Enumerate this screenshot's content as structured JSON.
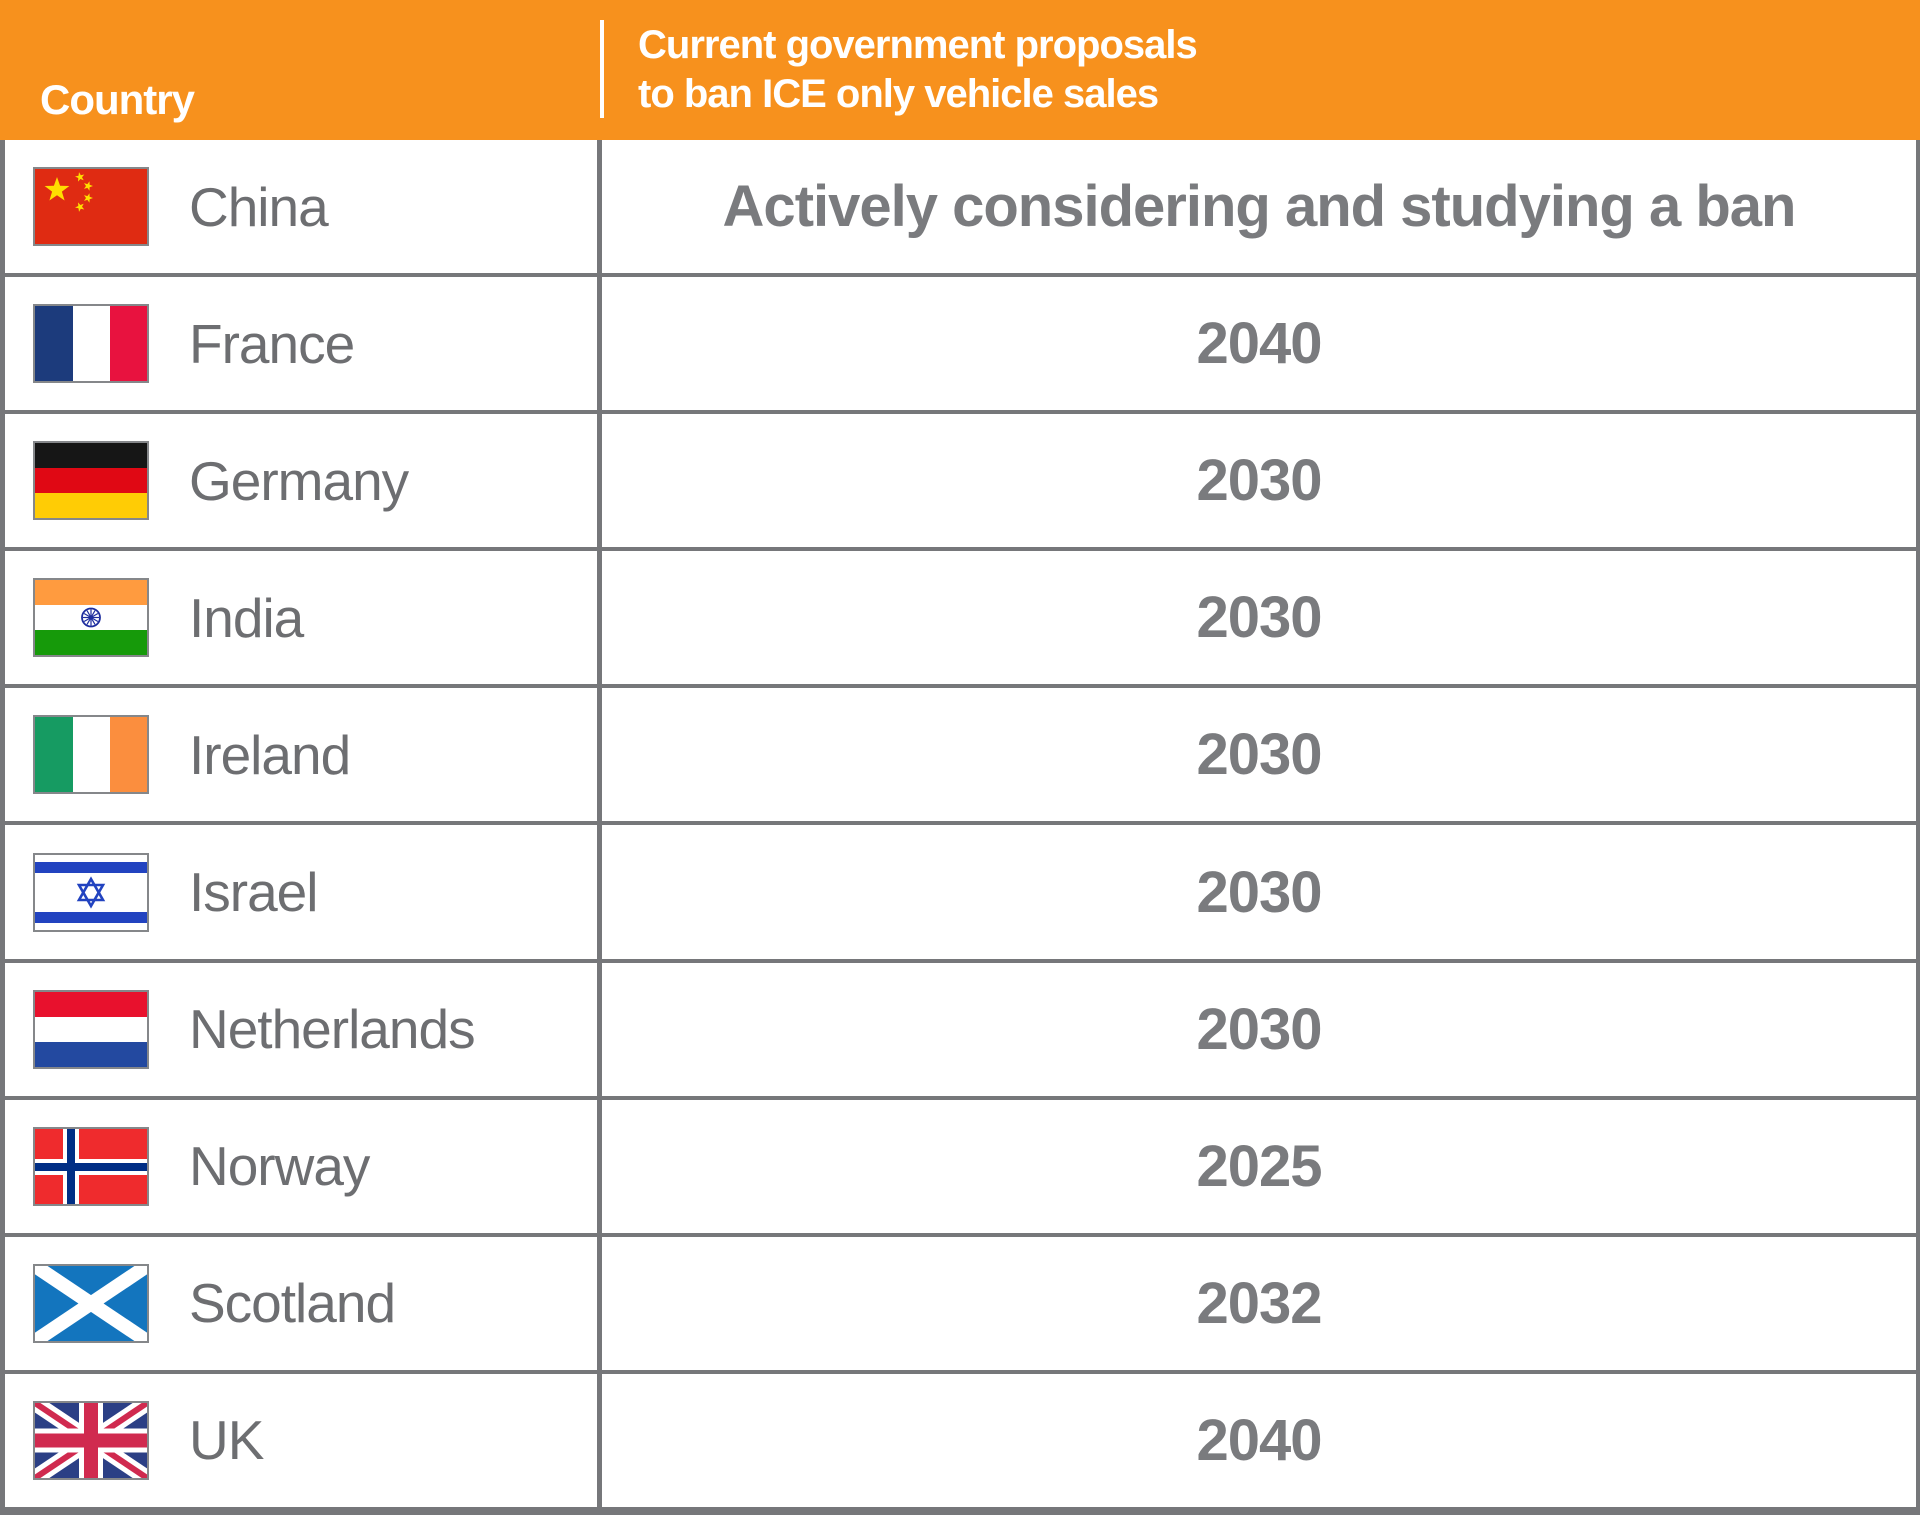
{
  "colors": {
    "header_bg": "#F7911D",
    "border": "#76777A",
    "label_text": "#6D6E71",
    "value_text": "#7A7B7E",
    "header_text": "#FFFFFF"
  },
  "header": {
    "country_label": "Country",
    "proposal_label_line1": "Current government proposals",
    "proposal_label_line2": "to ban ICE only vehicle sales"
  },
  "rows": [
    {
      "country": "China",
      "flag": "china-flag",
      "proposal": "Actively considering and studying a ban"
    },
    {
      "country": "France",
      "flag": "france-flag",
      "proposal": "2040"
    },
    {
      "country": "Germany",
      "flag": "germany-flag",
      "proposal": "2030"
    },
    {
      "country": "India",
      "flag": "india-flag",
      "proposal": "2030"
    },
    {
      "country": "Ireland",
      "flag": "ireland-flag",
      "proposal": "2030"
    },
    {
      "country": "Israel",
      "flag": "israel-flag",
      "proposal": "2030"
    },
    {
      "country": "Netherlands",
      "flag": "netherlands-flag",
      "proposal": "2030"
    },
    {
      "country": "Norway",
      "flag": "norway-flag",
      "proposal": "2025"
    },
    {
      "country": "Scotland",
      "flag": "scotland-flag",
      "proposal": "2032"
    },
    {
      "country": "UK",
      "flag": "uk-flag",
      "proposal": "2040"
    }
  ],
  "chart_data": {
    "type": "table",
    "title": "Current government proposals to ban ICE only vehicle sales",
    "columns": [
      "Country",
      "Current government proposals to ban ICE only vehicle sales"
    ],
    "rows": [
      [
        "China",
        "Actively considering and studying a ban"
      ],
      [
        "France",
        "2040"
      ],
      [
        "Germany",
        "2030"
      ],
      [
        "India",
        "2030"
      ],
      [
        "Ireland",
        "2030"
      ],
      [
        "Israel",
        "2030"
      ],
      [
        "Netherlands",
        "2030"
      ],
      [
        "Norway",
        "2025"
      ],
      [
        "Scotland",
        "2032"
      ],
      [
        "UK",
        "2040"
      ]
    ]
  }
}
